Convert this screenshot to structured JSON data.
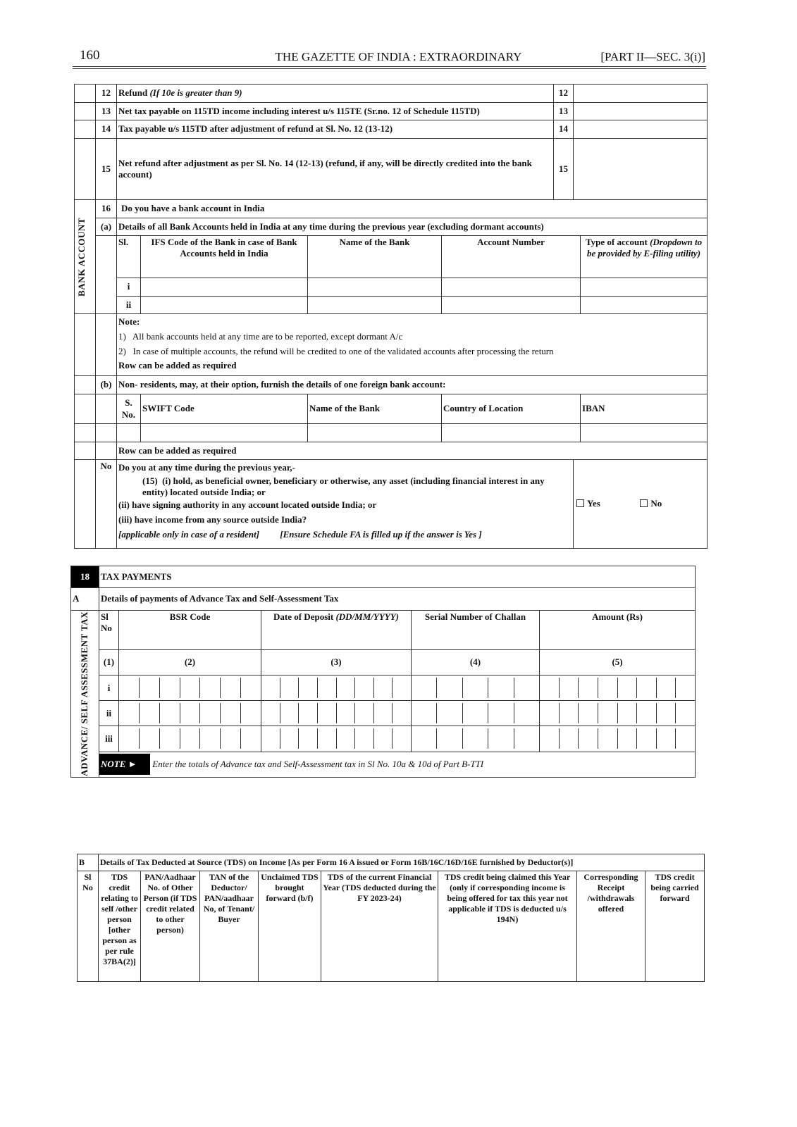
{
  "header": {
    "page_number": "160",
    "title": "THE GAZETTE OF INDIA : EXTRAORDINARY",
    "section": "[PART II—SEC. 3(i)]"
  },
  "refund_rows": [
    {
      "no": "12",
      "label": "Refund ",
      "label_italic": "(If 10e is greater than 9)",
      "ref": "12"
    },
    {
      "no": "13",
      "label": "Net tax payable on 115TD income including interest u/s 115TE (Sr.no. 12 of Schedule 115TD)",
      "label_italic": "",
      "ref": "13"
    },
    {
      "no": "14",
      "label": "Tax payable u/s 115TD after adjustment of refund at Sl. No. 12 (13-12)",
      "label_italic": "",
      "ref": "14"
    },
    {
      "no": "15",
      "label": "Net refund after adjustment as per Sl. No. 14 (12-13) (refund, if any, will be directly credited into the bank account)",
      "label_italic": "",
      "ref": "15"
    }
  ],
  "bank": {
    "side_label": "BANK ACCOUNT",
    "q16_no": "16",
    "q16": "Do you have a bank account in India",
    "a_no": "(a)",
    "a_label": "Details of all Bank Accounts held in India at any time during the previous year (excluding dormant accounts)",
    "columns": {
      "sl": "Sl.",
      "ifs": "IFS Code of the Bank in case of Bank Accounts held in India",
      "name": "Name of the Bank",
      "account": "Account Number",
      "type": "Type of account ",
      "type_italic": "(Dropdown to be provided by E-filing utility)"
    },
    "rows": [
      "i",
      "ii"
    ],
    "note_title": "Note:",
    "notes": [
      "1)   All bank accounts held at any time are to be reported, except dormant A/c",
      "2)   In case of multiple accounts, the refund will be credited to one of the validated accounts after processing the return"
    ],
    "row_add": "Row can be added as required",
    "b_no": "(b)",
    "b_label": "Non- residents, may, at their option, furnish the details of one foreign bank account:",
    "foreign_columns": {
      "sno": "S. No.",
      "swift": "SWIFT Code",
      "name": "Name of the Bank",
      "country": "Country of Location",
      "iban": "IBAN"
    },
    "row_add_2": "Row can be added as required"
  },
  "q17": {
    "no": "No",
    "intro": "Do you at any time during the previous year,-",
    "item_i": "(15)  (i) hold, as beneficial owner, beneficiary or otherwise, any asset (including financial interest in any entity) located outside India; or",
    "item_ii": "(ii) have signing authority in any account located outside India; or",
    "item_iii": "(iii) have income from any source outside India?",
    "note_a": "[applicable only in case of a resident]",
    "note_b": "[Ensure Schedule FA is filled up if the answer is Yes ]",
    "yes": "Yes"
  },
  "tax_payments": {
    "no": "18",
    "title": "TAX PAYMENTS",
    "a_no": "A",
    "a_label": "Details of payments of Advance Tax and Self-Assessment Tax",
    "side_label": "ADVANCE/ SELF ASSESSMENT TAX",
    "columns": {
      "sl": "Sl No",
      "bsr": "BSR Code",
      "date": "Date of Deposit ",
      "date_italic": "(DD/MM/YYYY)",
      "serial": "Serial Number of Challan",
      "amount": "Amount (Rs)"
    },
    "col_numbers": [
      "(1)",
      "(2)",
      "(3)",
      "(4)",
      "(5)"
    ],
    "rows": [
      "i",
      "ii",
      "iii"
    ],
    "note_tag": "NOTE ►",
    "note": "Enter the totals of Advance tax and Self-Assessment tax in Sl No. 10a  & 10d of Part B-TTI"
  },
  "tds": {
    "b_no": "B",
    "title": "Details of Tax Deducted at Source (TDS) on Income [As per Form 16 A issued or Form 16B/16C/16D/16E furnished by Deductor(s)]",
    "columns": [
      "Sl No",
      "TDS credit relating to self /other person [other person as per rule 37BA(2)]",
      "PAN/Aadhaar No. of Other Person (if TDS credit related to other person)",
      "TAN of the Deductor/ PAN/aadhaar No, of Tenant/ Buyer",
      "Unclaimed TDS brought forward (b/f)",
      "TDS of the current Financial Year  (TDS deducted during the FY  2023-24)",
      "TDS credit being claimed this Year (only if corresponding income is being offered for tax this year  not applicable if TDS is deducted u/s 194N)",
      "Corresponding Receipt /withdrawals offered",
      "TDS credit being carried forward"
    ]
  }
}
